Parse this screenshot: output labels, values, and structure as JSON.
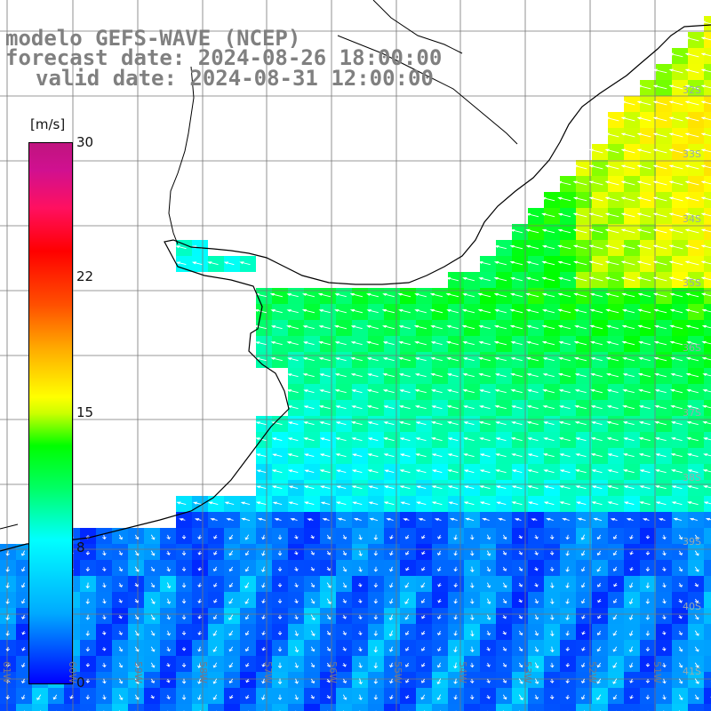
{
  "title": {
    "line1": "modelo GEFS-WAVE (NCEP)",
    "line2": "forecast date: 2024-08-26 18:00:00",
    "line3": "valid date: 2024-08-31 12:00:00"
  },
  "colorbar": {
    "unit": "[m/s]",
    "ticks": [
      "30",
      "22",
      "15",
      "8",
      "0"
    ],
    "tick_values": [
      30,
      22,
      15,
      8,
      0
    ],
    "range": [
      0,
      30
    ],
    "colors": [
      "#0000ff",
      "#00ffff",
      "#00ff00",
      "#ffff00",
      "#ff0000",
      "#c0147f"
    ]
  },
  "lat_labels": [
    "32S",
    "33S",
    "34S",
    "35S",
    "36S",
    "37S",
    "38S",
    "39S",
    "40S",
    "41S"
  ],
  "lon_labels": [
    "61W",
    "60W",
    "59W",
    "58W",
    "57W",
    "56W",
    "55W",
    "54W",
    "53W",
    "52W",
    "51W"
  ],
  "wind_field": {
    "description_visible": "wind speed shaded grid with direction arrows over ocean",
    "speed_pattern_mps": {
      "northeast": 14,
      "center": 11,
      "south": 4
    }
  }
}
